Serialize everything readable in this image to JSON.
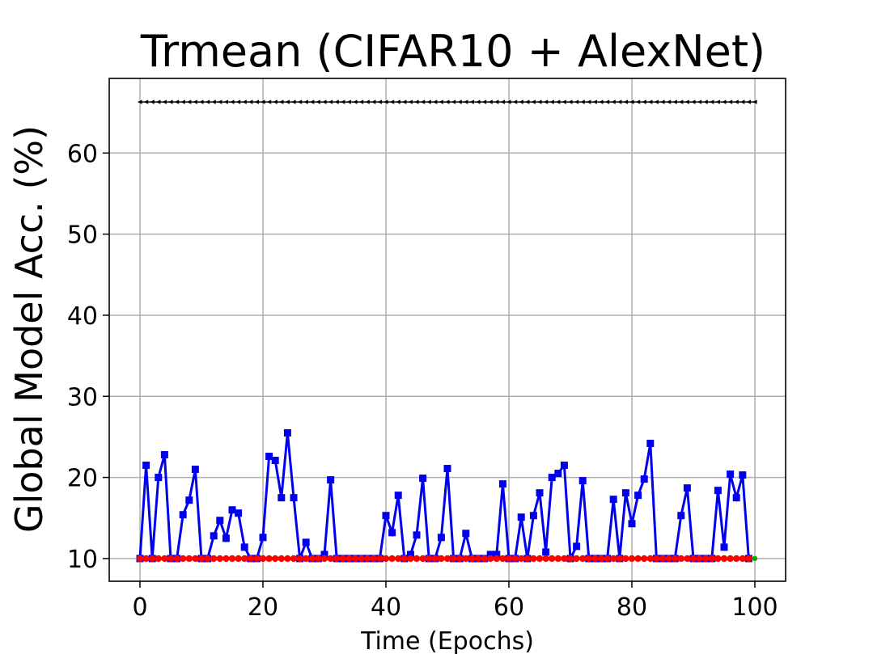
{
  "chart_data": {
    "type": "line",
    "title": "Trmean (CIFAR10 + AlexNet)",
    "xlabel": "Time (Epochs)",
    "ylabel": "Global Model Acc. (%)",
    "xlim": [
      -5,
      105
    ],
    "ylim": [
      7.2,
      69.2
    ],
    "xticks": [
      0,
      20,
      40,
      60,
      80,
      100
    ],
    "yticks": [
      10,
      20,
      30,
      40,
      50,
      60
    ],
    "grid": true,
    "series": [
      {
        "color": "#000000",
        "marker": "triangle-left",
        "x": [
          0,
          1,
          2,
          3,
          4,
          5,
          6,
          7,
          8,
          9,
          10,
          11,
          12,
          13,
          14,
          15,
          16,
          17,
          18,
          19,
          20,
          21,
          22,
          23,
          24,
          25,
          26,
          27,
          28,
          29,
          30,
          31,
          32,
          33,
          34,
          35,
          36,
          37,
          38,
          39,
          40,
          41,
          42,
          43,
          44,
          45,
          46,
          47,
          48,
          49,
          50,
          51,
          52,
          53,
          54,
          55,
          56,
          57,
          58,
          59,
          60,
          61,
          62,
          63,
          64,
          65,
          66,
          67,
          68,
          69,
          70,
          71,
          72,
          73,
          74,
          75,
          76,
          77,
          78,
          79,
          80,
          81,
          82,
          83,
          84,
          85,
          86,
          87,
          88,
          89,
          90,
          91,
          92,
          93,
          94,
          95,
          96,
          97,
          98,
          99,
          100
        ],
        "values": [
          66.3,
          66.3,
          66.3,
          66.3,
          66.3,
          66.3,
          66.3,
          66.3,
          66.3,
          66.3,
          66.3,
          66.3,
          66.3,
          66.3,
          66.3,
          66.3,
          66.3,
          66.3,
          66.3,
          66.3,
          66.3,
          66.3,
          66.3,
          66.3,
          66.3,
          66.3,
          66.3,
          66.3,
          66.3,
          66.3,
          66.3,
          66.3,
          66.3,
          66.3,
          66.3,
          66.3,
          66.3,
          66.3,
          66.3,
          66.3,
          66.3,
          66.3,
          66.3,
          66.3,
          66.3,
          66.3,
          66.3,
          66.3,
          66.3,
          66.3,
          66.3,
          66.3,
          66.3,
          66.3,
          66.3,
          66.3,
          66.3,
          66.3,
          66.3,
          66.3,
          66.3,
          66.3,
          66.3,
          66.3,
          66.3,
          66.3,
          66.3,
          66.3,
          66.3,
          66.3,
          66.3,
          66.3,
          66.3,
          66.3,
          66.3,
          66.3,
          66.3,
          66.3,
          66.3,
          66.3,
          66.3,
          66.3,
          66.3,
          66.3,
          66.3,
          66.3,
          66.3,
          66.3,
          66.3,
          66.3,
          66.3,
          66.3,
          66.3,
          66.3,
          66.3,
          66.3,
          66.3,
          66.3,
          66.3,
          66.3,
          66.3
        ]
      },
      {
        "color": "#0000ee",
        "marker": "square",
        "x": [
          0,
          1,
          2,
          3,
          4,
          5,
          6,
          7,
          8,
          9,
          10,
          11,
          12,
          13,
          14,
          15,
          16,
          17,
          18,
          19,
          20,
          21,
          22,
          23,
          24,
          25,
          26,
          27,
          28,
          29,
          30,
          31,
          32,
          33,
          34,
          35,
          36,
          37,
          38,
          39,
          40,
          41,
          42,
          43,
          44,
          45,
          46,
          47,
          48,
          49,
          50,
          51,
          52,
          53,
          54,
          55,
          56,
          57,
          58,
          59,
          60,
          61,
          62,
          63,
          64,
          65,
          66,
          67,
          68,
          69,
          70,
          71,
          72,
          73,
          74,
          75,
          76,
          77,
          78,
          79,
          80,
          81,
          82,
          83,
          84,
          85,
          86,
          87,
          88,
          89,
          90,
          91,
          92,
          93,
          94,
          95,
          96,
          97,
          98,
          99
        ],
        "values": [
          10,
          21.5,
          10,
          20,
          22.8,
          10,
          10,
          15.4,
          17.2,
          21,
          10,
          10,
          12.8,
          14.7,
          12.5,
          16,
          15.6,
          11.4,
          10,
          10,
          12.6,
          22.6,
          22.1,
          17.5,
          25.5,
          17.5,
          10,
          12,
          10,
          10,
          10.5,
          19.7,
          10,
          10,
          10,
          10,
          10,
          10,
          10,
          10,
          15.3,
          13.2,
          17.8,
          10,
          10.5,
          12.9,
          19.9,
          10,
          10,
          12.6,
          21.1,
          10,
          10,
          13.1,
          10,
          10,
          10,
          10.5,
          10.5,
          19.2,
          10,
          10,
          15.1,
          10,
          15.3,
          18.1,
          10.8,
          20,
          20.5,
          21.5,
          10,
          11.5,
          19.6,
          10,
          10,
          10,
          10,
          17.3,
          10,
          18.1,
          14.3,
          17.8,
          19.8,
          24.2,
          10,
          10,
          10,
          10,
          15.3,
          18.7,
          10,
          10,
          10,
          10,
          18.4,
          11.4,
          20.4,
          17.5,
          20.3,
          10
        ]
      },
      {
        "color": "#ff0000",
        "marker": "circle",
        "x": [
          0,
          1,
          2,
          3,
          4,
          5,
          6,
          7,
          8,
          9,
          10,
          11,
          12,
          13,
          14,
          15,
          16,
          17,
          18,
          19,
          20,
          21,
          22,
          23,
          24,
          25,
          26,
          27,
          28,
          29,
          30,
          31,
          32,
          33,
          34,
          35,
          36,
          37,
          38,
          39,
          40,
          41,
          42,
          43,
          44,
          45,
          46,
          47,
          48,
          49,
          50,
          51,
          52,
          53,
          54,
          55,
          56,
          57,
          58,
          59,
          60,
          61,
          62,
          63,
          64,
          65,
          66,
          67,
          68,
          69,
          70,
          71,
          72,
          73,
          74,
          75,
          76,
          77,
          78,
          79,
          80,
          81,
          82,
          83,
          84,
          85,
          86,
          87,
          88,
          89,
          90,
          91,
          92,
          93,
          94,
          95,
          96,
          97,
          98,
          99
        ],
        "values": [
          10,
          10,
          10,
          10,
          10,
          10,
          10,
          10,
          10,
          10,
          10,
          10,
          10,
          10,
          10,
          10,
          10,
          10,
          10,
          10,
          10,
          10,
          10,
          10,
          10,
          10,
          10,
          10,
          10,
          10,
          10,
          10,
          10,
          10,
          10,
          10,
          10,
          10,
          10,
          10,
          10,
          10,
          10,
          10,
          10,
          10,
          10,
          10,
          10,
          10,
          10,
          10,
          10,
          10,
          10,
          10,
          10,
          10,
          10,
          10,
          10,
          10,
          10,
          10,
          10,
          10,
          10,
          10,
          10,
          10,
          10,
          10,
          10,
          10,
          10,
          10,
          10,
          10,
          10,
          10,
          10,
          10,
          10,
          10,
          10,
          10,
          10,
          10,
          10,
          10,
          10,
          10,
          10,
          10,
          10,
          10,
          10,
          10,
          10,
          10
        ]
      },
      {
        "color": "#00aa00",
        "marker": "point",
        "x": [
          100
        ],
        "values": [
          10
        ]
      }
    ]
  }
}
